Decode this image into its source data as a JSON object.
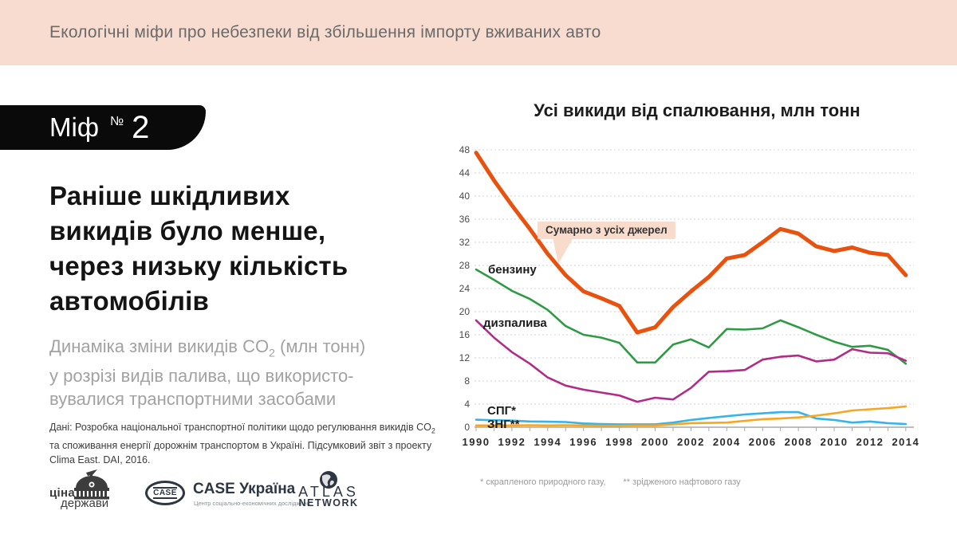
{
  "header": {
    "title": "Екологічні міфи про небезпеки від збільшення імпорту вживаних авто",
    "bg": "#f9dcd0"
  },
  "myth_badge": {
    "word": "Міф",
    "numero": "№",
    "number": "2"
  },
  "headline": {
    "l1": "Раніше шкідливих",
    "l2": "викидів було менше,",
    "l3": "через низьку кількість",
    "l4": "автомобілів"
  },
  "subtitle": {
    "l1_pre": "Динаміка зміни викидів CO",
    "l1_sub": "2",
    "l1_post": " (млн тонн)",
    "l2": "у розрізі видів палива, що використо-",
    "l3": "вувалися транспортними засобами"
  },
  "source_note": {
    "l1_pre": "Дані: Розробка національної транспортної політики щодо регулювання викидів CO",
    "l1_sub": "2",
    "l2": "та споживання енергії дорожнім транспортом в Україні. Підсумковий звіт з проекту",
    "l3": "Clima East. DAI, 2016."
  },
  "logos": {
    "tsina": {
      "line1": "ціна",
      "line2": "держави"
    },
    "case": {
      "badge": "CASE",
      "title": "CASE Україна",
      "subtitle": "Центр соціально-економічних досліджень"
    },
    "atlas": {
      "line1": "ATLAS",
      "line2": "NETWORK"
    }
  },
  "chart_data": {
    "type": "line",
    "title": "Усі викиди від спалювання, млн тонн",
    "xlabel": "",
    "ylabel": "млн тонн",
    "ylim": [
      0,
      48
    ],
    "ytick_step": 4,
    "xtick_step": 2,
    "grid": "dashed-horizontal",
    "x": [
      1990,
      1991,
      1992,
      1993,
      1994,
      1995,
      1996,
      1997,
      1998,
      1999,
      2000,
      2001,
      2002,
      2003,
      2004,
      2005,
      2006,
      2007,
      2008,
      2009,
      2010,
      2011,
      2012,
      2013,
      2014
    ],
    "series": [
      {
        "name": "бензину",
        "color": "#2e9b44",
        "width": 2.6,
        "values": [
          27.3,
          25.5,
          23.6,
          22.2,
          20.3,
          17.5,
          16.0,
          15.5,
          14.6,
          11.2,
          11.2,
          14.3,
          15.2,
          13.8,
          17.0,
          16.9,
          17.1,
          18.5,
          17.3,
          16.0,
          14.8,
          13.9,
          14.1,
          13.4,
          11.0
        ]
      },
      {
        "name": "дизпалива",
        "color": "#b02c88",
        "width": 2.6,
        "values": [
          18.5,
          15.5,
          13.0,
          11.0,
          8.6,
          7.2,
          6.5,
          6.0,
          5.5,
          4.4,
          5.1,
          4.8,
          6.8,
          9.6,
          9.7,
          9.9,
          11.7,
          12.2,
          12.4,
          11.4,
          11.7,
          13.5,
          12.9,
          12.8,
          11.5
        ]
      },
      {
        "name": "СПГ*",
        "color": "#36b3e8",
        "width": 2.6,
        "values": [
          1.3,
          1.2,
          1.15,
          1.0,
          0.95,
          0.9,
          0.65,
          0.55,
          0.5,
          0.5,
          0.5,
          0.8,
          1.25,
          1.6,
          1.9,
          2.2,
          2.4,
          2.6,
          2.6,
          1.5,
          1.25,
          0.8,
          1.0,
          0.7,
          0.55
        ]
      },
      {
        "name": "ЗНГ**",
        "color": "#f6a623",
        "width": 2.6,
        "values": [
          0.3,
          0.3,
          0.3,
          0.35,
          0.3,
          0.35,
          0.3,
          0.25,
          0.25,
          0.3,
          0.3,
          0.5,
          0.7,
          0.75,
          0.8,
          1.1,
          1.4,
          1.5,
          1.7,
          2.0,
          2.4,
          2.9,
          3.1,
          3.3,
          3.6
        ]
      },
      {
        "name": "Сумарно з усіх джерел",
        "color": "#e8520e",
        "width": 5,
        "values": [
          47.5,
          42.7,
          38.4,
          34.3,
          30.0,
          26.3,
          23.5,
          22.3,
          21.0,
          16.4,
          17.3,
          20.8,
          23.5,
          26.0,
          29.2,
          29.8,
          32.0,
          34.3,
          33.5,
          31.3,
          30.5,
          31.1,
          30.2,
          29.8,
          26.3
        ]
      }
    ],
    "callout": {
      "bg": "#f9dbcb"
    },
    "legend_position": "inline-labels"
  },
  "footnote": {
    "part1": "* скрапленого природного газу,",
    "part2": "** зрідженого нафтового газу"
  }
}
